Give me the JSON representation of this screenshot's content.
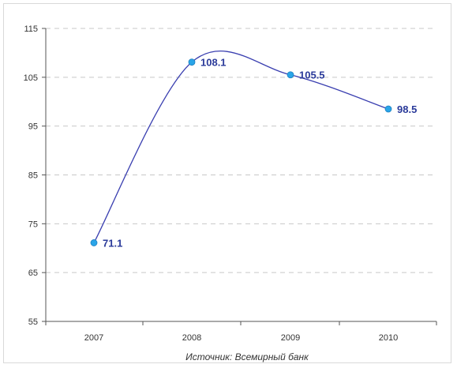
{
  "chart_data": {
    "type": "line",
    "title": "",
    "xlabel": "",
    "ylabel": "",
    "x": [
      "2007",
      "2008",
      "2009",
      "2010"
    ],
    "series": [
      {
        "values": [
          71.1,
          108.1,
          105.5,
          98.5
        ],
        "labels": [
          "71.1",
          "108.1",
          "105.5",
          "98.5"
        ]
      }
    ],
    "ylim": [
      55,
      115
    ],
    "yticks": [
      55,
      65,
      75,
      85,
      95,
      105,
      115
    ],
    "ytick_labels": [
      "55",
      "65",
      "75",
      "85",
      "95",
      "105",
      "115"
    ],
    "grid": true,
    "smooth": true,
    "legend": "none",
    "colors": {
      "line": "#3a3fb0",
      "marker": "#2aa5e8",
      "label": "#2a3a9a",
      "grid": "#c8c8c8"
    }
  },
  "caption": "Источник: Всемирный банк"
}
